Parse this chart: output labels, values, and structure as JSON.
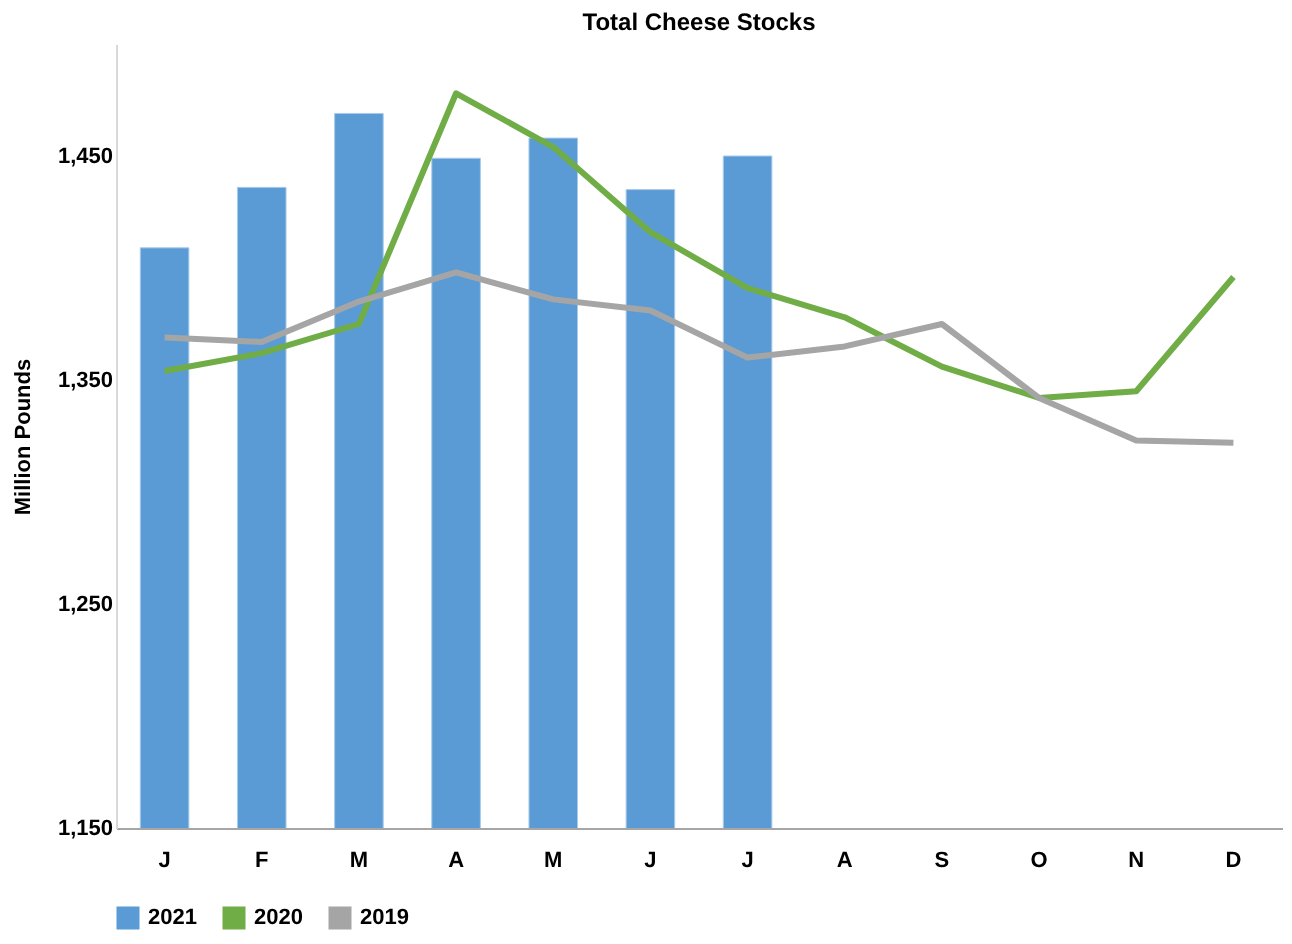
{
  "chart_data": {
    "type": "bar",
    "title": "Total Cheese Stocks",
    "ylabel": "Million Pounds",
    "categories": [
      "J",
      "F",
      "M",
      "A",
      "M",
      "J",
      "J",
      "A",
      "S",
      "O",
      "N",
      "D"
    ],
    "series": [
      {
        "name": "2021",
        "color": "#5b9bd5",
        "values": [
          1409,
          1436,
          1469,
          1449,
          1458,
          1435,
          1450,
          null,
          null,
          null,
          null,
          null
        ]
      },
      {
        "name": "2020",
        "type": "line",
        "color": "#70ad47",
        "values": [
          1354,
          1362,
          1375,
          1478,
          1454,
          1416,
          1391,
          1378,
          1356,
          1342,
          1345,
          1396
        ]
      },
      {
        "name": "2019",
        "type": "line",
        "color": "#a5a5a5",
        "values": [
          1369,
          1367,
          1385,
          1398,
          1386,
          1381,
          1360,
          1365,
          1375,
          1342,
          1323,
          1322
        ]
      }
    ],
    "ylim": [
      1150,
      1500
    ],
    "yticks": [
      {
        "value": 1150,
        "label": "1,150"
      },
      {
        "value": 1250,
        "label": "1,250"
      },
      {
        "value": 1350,
        "label": "1,350"
      },
      {
        "value": 1450,
        "label": "1,450"
      }
    ],
    "grid": false,
    "legend": "bottom",
    "line_style": "solid",
    "marker": "none"
  }
}
